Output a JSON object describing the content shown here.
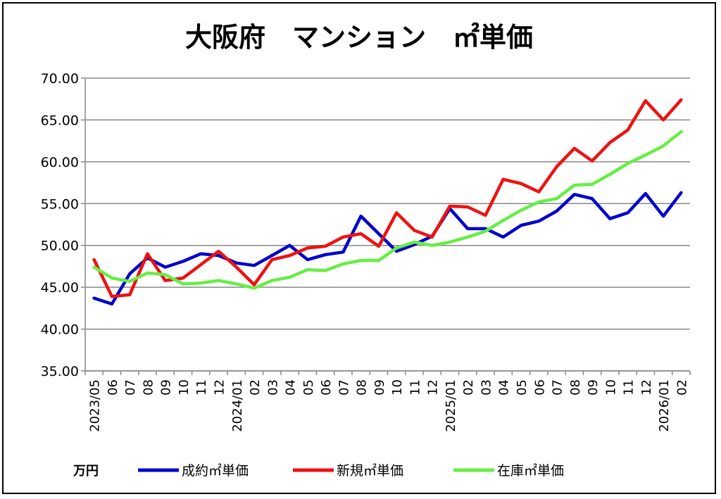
{
  "chart_data": {
    "type": "line",
    "title": "大阪府　マンション　㎡単価",
    "unit_label": "万円",
    "x": [
      "2023/05",
      "06",
      "07",
      "08",
      "09",
      "10",
      "11",
      "12",
      "2024/01",
      "02",
      "03",
      "04",
      "05",
      "06",
      "07",
      "08",
      "09",
      "10",
      "11",
      "12",
      "2025/01",
      "02",
      "03",
      "04",
      "05",
      "06",
      "07",
      "08",
      "09",
      "10",
      "11",
      "12",
      "2026/01",
      "02"
    ],
    "ylim": [
      35,
      70
    ],
    "yticks": [
      "35.00",
      "40.00",
      "45.00",
      "50.00",
      "55.00",
      "60.00",
      "65.00",
      "70.00"
    ],
    "grid": true,
    "legend": "bottom",
    "series": [
      {
        "name": "成約㎡単価",
        "color": "#0000cc",
        "values": [
          43.7,
          43.0,
          46.6,
          48.5,
          47.4,
          48.1,
          49.0,
          48.8,
          47.9,
          47.6,
          48.8,
          50.0,
          48.3,
          48.9,
          49.2,
          53.5,
          51.4,
          49.3,
          50.1,
          51.1,
          54.4,
          52.0,
          52.0,
          51.0,
          52.4,
          52.9,
          54.1,
          56.1,
          55.6,
          53.2,
          53.9,
          56.2,
          53.5,
          56.3
        ]
      },
      {
        "name": "新規㎡単価",
        "color": "#ee1111",
        "values": [
          48.3,
          43.9,
          44.1,
          49.0,
          45.8,
          46.1,
          47.7,
          49.3,
          47.4,
          45.3,
          48.3,
          48.8,
          49.7,
          49.9,
          51.0,
          51.4,
          49.9,
          53.9,
          51.8,
          51.0,
          54.7,
          54.6,
          53.6,
          57.9,
          57.4,
          56.4,
          59.4,
          61.6,
          60.1,
          62.3,
          63.8,
          67.3,
          65.0,
          67.4
        ]
      },
      {
        "name": "在庫㎡単価",
        "color": "#66ee44",
        "values": [
          47.4,
          46.1,
          45.7,
          46.7,
          46.5,
          45.4,
          45.5,
          45.8,
          45.4,
          44.9,
          45.8,
          46.2,
          47.1,
          47.0,
          47.8,
          48.2,
          48.2,
          49.7,
          50.4,
          50.0,
          50.4,
          51.0,
          51.7,
          53.0,
          54.2,
          55.2,
          55.6,
          57.2,
          57.3,
          58.5,
          59.8,
          60.8,
          61.9,
          63.6
        ]
      }
    ]
  }
}
